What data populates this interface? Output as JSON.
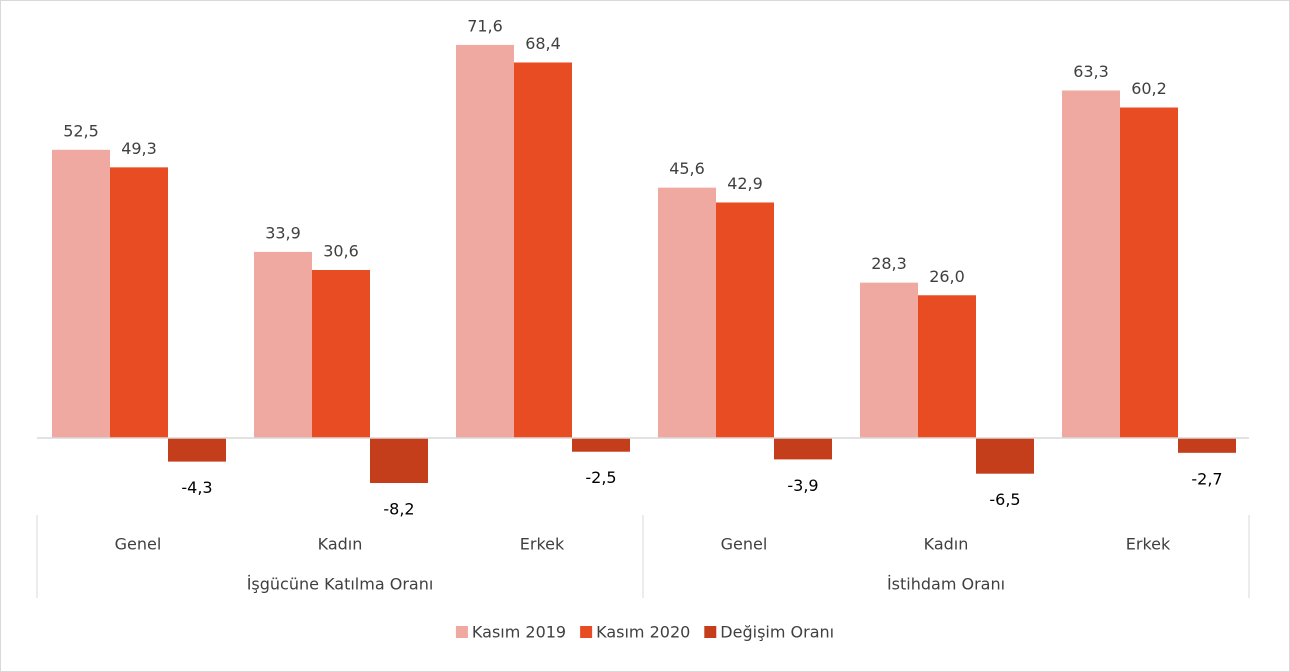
{
  "chart_data": {
    "type": "bar",
    "categories": [
      "Genel",
      "Kadın",
      "Erkek",
      "Genel",
      "Kadın",
      "Erkek"
    ],
    "category_groups": [
      "İşgücüne Katılma Oranı",
      "İstihdam Oranı"
    ],
    "series": [
      {
        "name": "Kasım 2019",
        "color": "#f0a9a1",
        "values": [
          52.5,
          33.9,
          71.6,
          45.6,
          28.3,
          63.3
        ],
        "value_labels": [
          "52,5",
          "33,9",
          "71,6",
          "45,6",
          "28,3",
          "63,3"
        ]
      },
      {
        "name": "Kasım 2020",
        "color": "#e84c22",
        "values": [
          49.3,
          30.6,
          68.4,
          42.9,
          26.0,
          60.2
        ],
        "value_labels": [
          "49,3",
          "30,6",
          "68,4",
          "42,9",
          "26,0",
          "60,2"
        ]
      },
      {
        "name": "Değişim Oranı",
        "color": "#c43e1c",
        "values": [
          -4.3,
          -8.2,
          -2.5,
          -3.9,
          -6.5,
          -2.7
        ],
        "value_labels": [
          "-4,3",
          "-8,2",
          "-2,5",
          "-3,9",
          "-6,5",
          "-2,7"
        ]
      }
    ],
    "legend": "bottom"
  }
}
